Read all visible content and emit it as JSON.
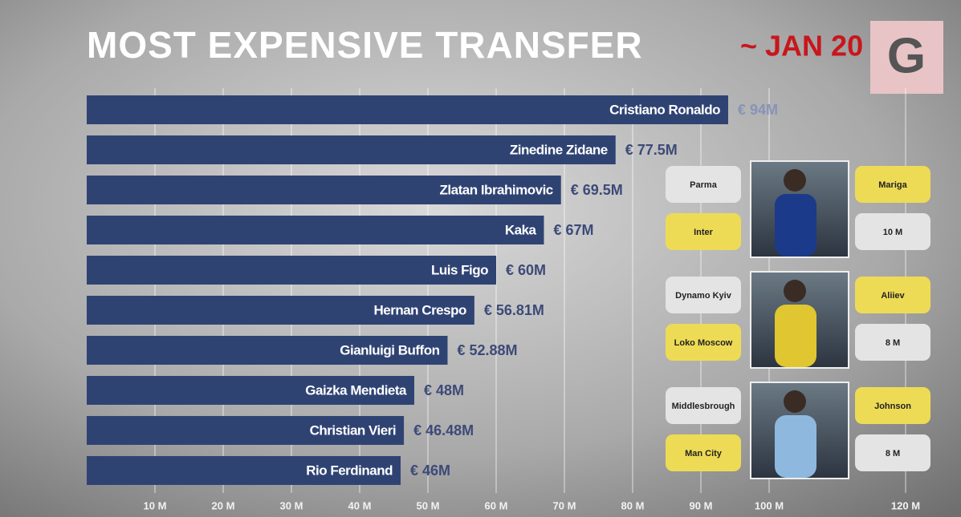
{
  "chart_data": {
    "type": "hbar",
    "title": "MOST EXPENSIVE TRANSFER",
    "subtitle": "~ JAN 20",
    "categories": [
      "Cristiano Ronaldo",
      "Zinedine Zidane",
      "Zlatan Ibrahimovic",
      "Kaka",
      "Luis Figo",
      "Hernan Crespo",
      "Gianluigi Buffon",
      "Gaizka Mendieta",
      "Christian Vieri",
      "Rio Ferdinand"
    ],
    "values": [
      94,
      77.5,
      69.5,
      67,
      60,
      56.81,
      52.88,
      48,
      46.48,
      46
    ],
    "value_labels": [
      "€ 94M",
      "€ 77.5M",
      "€ 69.5M",
      "€ 67M",
      "€ 60M",
      "€ 56.81M",
      "€ 52.88M",
      "€ 48M",
      "€ 46.48M",
      "€ 46M"
    ],
    "color": "#2f4373",
    "xlim": [
      0,
      120
    ],
    "xticks": [
      {
        "value": 10,
        "label": "10 M"
      },
      {
        "value": 20,
        "label": "20 M"
      },
      {
        "value": 30,
        "label": "30 M"
      },
      {
        "value": 40,
        "label": "40 M"
      },
      {
        "value": 50,
        "label": "50 M"
      },
      {
        "value": 60,
        "label": "60 M"
      },
      {
        "value": 70,
        "label": "70 M"
      },
      {
        "value": 80,
        "label": "80 M"
      },
      {
        "value": 90,
        "label": "90 M"
      },
      {
        "value": 100,
        "label": "100 M"
      },
      {
        "value": 120,
        "label": "120 M"
      }
    ],
    "grid": true
  },
  "transfers": [
    {
      "from": "Parma",
      "to": "Inter",
      "player": "Mariga",
      "fee": "10 M"
    },
    {
      "from": "Dynamo Kyiv",
      "to": "Loko Moscow",
      "player": "Aliiev",
      "fee": "8 M"
    },
    {
      "from": "Middlesbrough",
      "to": "Man City",
      "player": "Johnson",
      "fee": "8 M"
    }
  ],
  "logo": "G"
}
